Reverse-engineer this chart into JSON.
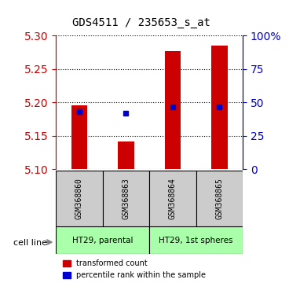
{
  "title": "GDS4511 / 235653_s_at",
  "samples": [
    "GSM368860",
    "GSM368863",
    "GSM368864",
    "GSM368865"
  ],
  "transformed_count": [
    5.196,
    5.142,
    5.277,
    5.285
  ],
  "percentile_rank": [
    5.186,
    5.184,
    5.193,
    5.193
  ],
  "y_min": 5.1,
  "y_max": 5.3,
  "y_ticks": [
    5.1,
    5.15,
    5.2,
    5.25,
    5.3
  ],
  "y2_ticks": [
    0,
    25,
    50,
    75,
    100
  ],
  "y2_labels": [
    "0",
    "25",
    "50",
    "75",
    "100%"
  ],
  "bar_color": "#cc0000",
  "blue_color": "#0000cc",
  "bar_width": 0.35,
  "cell_line_groups": [
    {
      "label": "HT29, parental",
      "cols": [
        0,
        1
      ],
      "color": "#aaffaa"
    },
    {
      "label": "HT29, 1st spheres",
      "cols": [
        2,
        3
      ],
      "color": "#aaffaa"
    }
  ],
  "sample_box_color": "#cccccc",
  "left_tick_color": "#cc0000",
  "right_tick_color": "#0000cc",
  "legend_tc": "transformed count",
  "legend_pr": "percentile rank within the sample",
  "cell_line_label": "cell line"
}
